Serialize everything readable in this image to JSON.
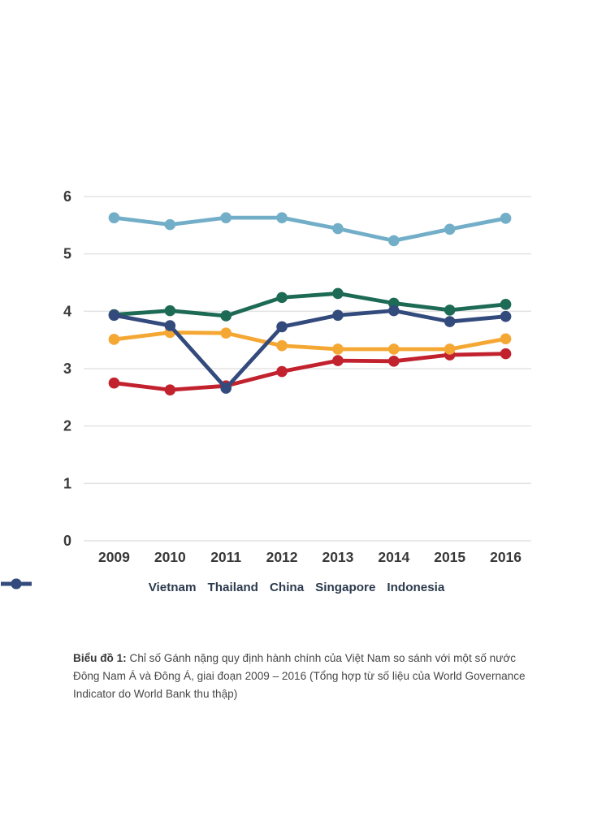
{
  "chart_data": {
    "type": "line",
    "x": [
      "2009",
      "2010",
      "2011",
      "2012",
      "2013",
      "2014",
      "2015",
      "2016"
    ],
    "series": [
      {
        "name": "Vietnam",
        "color": "#c2222e",
        "values": [
          2.75,
          2.63,
          2.7,
          2.95,
          3.14,
          3.13,
          3.24,
          3.26
        ]
      },
      {
        "name": "Thailand",
        "color": "#f5a733",
        "values": [
          3.51,
          3.63,
          3.62,
          3.4,
          3.34,
          3.34,
          3.34,
          3.52
        ]
      },
      {
        "name": "China",
        "color": "#1d6a55",
        "values": [
          3.94,
          4.01,
          3.92,
          4.24,
          4.31,
          4.14,
          4.02,
          4.12
        ]
      },
      {
        "name": "Singapore",
        "color": "#72aec8",
        "values": [
          5.63,
          5.51,
          5.63,
          5.63,
          5.44,
          5.23,
          5.43,
          5.62
        ]
      },
      {
        "name": "Indonesia",
        "color": "#334a7d",
        "values": [
          3.93,
          3.75,
          2.66,
          3.73,
          3.93,
          4.01,
          3.82,
          3.91
        ]
      }
    ],
    "yticks": [
      0,
      1,
      2,
      3,
      4,
      5,
      6
    ],
    "ylim": [
      0,
      6
    ],
    "grid": "horizontal",
    "gridline_color": "#e3e3e3",
    "legend_position": "bottom",
    "title": "",
    "xlabel": "",
    "ylabel": ""
  },
  "caption": {
    "label": "Biểu đồ 1:",
    "text": " Chỉ số Gánh nặng quy định hành chính của Việt Nam so sánh với một số nước Đông Nam Á và Đông Á, giai đoạn 2009 – 2016 (Tổng hợp từ số liệu của World Governance Indicator do World Bank thu thập)"
  }
}
